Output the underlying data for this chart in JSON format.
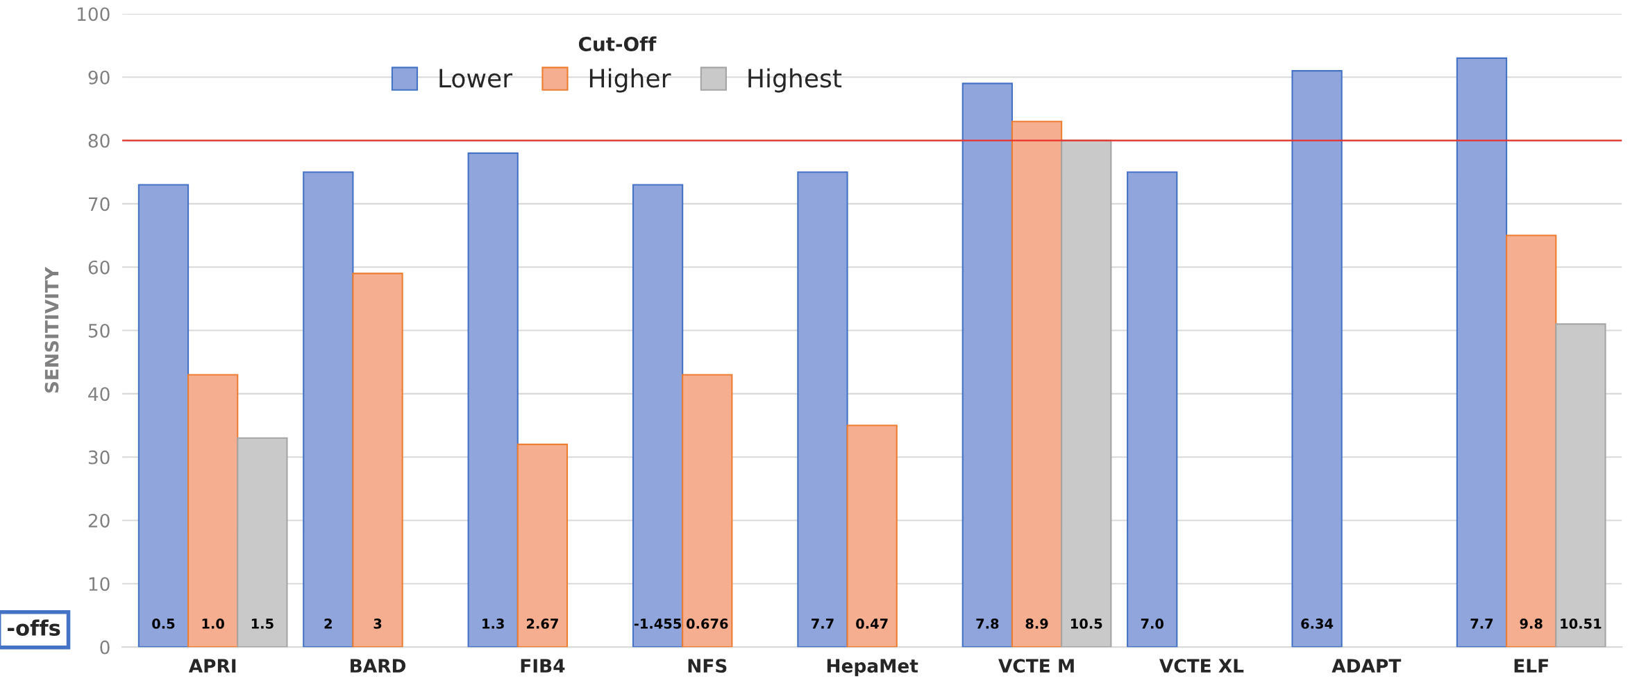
{
  "chart_data": {
    "type": "bar",
    "ylabel": "SENSITIVITY",
    "legend_title": "Cut-Off",
    "categories": [
      "APRI",
      "BARD",
      "FIB4",
      "NFS",
      "HepaMet",
      "VCTE M",
      "VCTE XL",
      "ADAPT",
      "ELF"
    ],
    "series": [
      {
        "name": "Lower",
        "color": "#8fa5dc",
        "values": [
          73,
          75,
          78,
          73,
          75,
          89,
          75,
          91,
          93
        ]
      },
      {
        "name": "Higher",
        "color": "#f5ae90",
        "values": [
          43,
          59,
          32,
          43,
          35,
          83,
          null,
          null,
          65
        ]
      },
      {
        "name": "Highest",
        "color": "#c9c9c9",
        "values": [
          33,
          null,
          null,
          null,
          null,
          80,
          null,
          null,
          51
        ]
      }
    ],
    "ylim": [
      0,
      100
    ],
    "yticks": [
      0,
      10,
      20,
      30,
      40,
      50,
      60,
      70,
      80,
      90,
      100
    ],
    "ref_lines": [
      {
        "axis": "y",
        "value": 80,
        "color": "#e8322a"
      }
    ],
    "annotations": [
      "0.5",
      "1.0",
      "1.5",
      "2",
      "3",
      "1.3",
      "2.67",
      "-1.455",
      "0.676",
      "7.7",
      "0.47",
      "7.8",
      "8.9",
      "10.5",
      "7.0",
      "6.34",
      "7.7",
      "9.8",
      "10.51",
      "-offs"
    ],
    "grid": "y",
    "legend": "top"
  }
}
